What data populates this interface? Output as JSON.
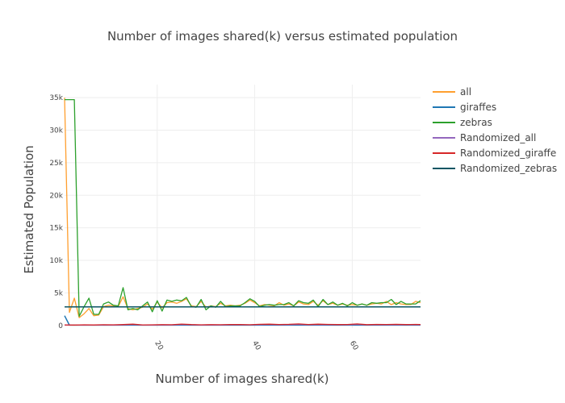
{
  "chart_data": {
    "type": "line",
    "title": "Number of images shared(k) versus estimated population",
    "xlabel": "Number of images shared(k)",
    "ylabel": "Estimated Population",
    "xlim": [
      1,
      74
    ],
    "ylim": [
      -400,
      37000
    ],
    "x_ticks": [
      20,
      40,
      60
    ],
    "y_ticks": [
      {
        "value": 0,
        "label": "0"
      },
      {
        "value": 5000,
        "label": "5k"
      },
      {
        "value": 10000,
        "label": "10k"
      },
      {
        "value": 15000,
        "label": "15k"
      },
      {
        "value": 20000,
        "label": "20k"
      },
      {
        "value": 25000,
        "label": "25k"
      },
      {
        "value": 30000,
        "label": "30k"
      },
      {
        "value": 35000,
        "label": "35k"
      }
    ],
    "grid": true,
    "legend_position": "right",
    "series": [
      {
        "name": "all",
        "color": "#ff9f2f",
        "x": [
          1,
          2,
          3,
          4,
          5,
          6,
          7,
          8,
          9,
          10,
          11,
          12,
          13,
          14,
          15,
          16,
          17,
          18,
          19,
          20,
          21,
          22,
          23,
          24,
          25,
          26,
          27,
          28,
          29,
          30,
          31,
          32,
          33,
          34,
          35,
          36,
          37,
          38,
          39,
          40,
          41,
          42,
          43,
          44,
          45,
          46,
          47,
          48,
          49,
          50,
          51,
          52,
          53,
          54,
          55,
          56,
          57,
          58,
          59,
          60,
          61,
          62,
          63,
          64,
          65,
          66,
          67,
          68,
          69,
          70,
          71,
          72,
          73,
          74
        ],
        "y": [
          35000,
          2000,
          4200,
          1200,
          1800,
          2600,
          1500,
          1600,
          2900,
          3100,
          3000,
          2900,
          4400,
          2600,
          2400,
          2600,
          2800,
          3300,
          2500,
          3600,
          2700,
          3500,
          3600,
          3400,
          3700,
          4100,
          3000,
          2900,
          3700,
          2800,
          3000,
          2900,
          3400,
          3000,
          3100,
          3000,
          3100,
          3400,
          3900,
          3500,
          3000,
          3200,
          3100,
          3000,
          3500,
          3100,
          3300,
          3000,
          3600,
          3300,
          3200,
          3700,
          3100,
          3800,
          3200,
          3400,
          3100,
          3300,
          3100,
          3200,
          3100,
          3300,
          3100,
          3300,
          3400,
          3300,
          3700,
          3200,
          3500,
          3300,
          3200,
          3200,
          3700,
          3500
        ]
      },
      {
        "name": "giraffes",
        "color": "#1f77b4",
        "x": [
          1,
          2,
          74
        ],
        "y": [
          1500,
          50,
          50
        ]
      },
      {
        "name": "zebras",
        "color": "#2ca02c",
        "x": [
          1,
          2,
          3,
          4,
          5,
          6,
          7,
          8,
          9,
          10,
          11,
          12,
          13,
          14,
          15,
          16,
          17,
          18,
          19,
          20,
          21,
          22,
          23,
          24,
          25,
          26,
          27,
          28,
          29,
          30,
          31,
          32,
          33,
          34,
          35,
          36,
          37,
          38,
          39,
          40,
          41,
          42,
          43,
          44,
          45,
          46,
          47,
          48,
          49,
          50,
          51,
          52,
          53,
          54,
          55,
          56,
          57,
          58,
          59,
          60,
          61,
          62,
          63,
          64,
          65,
          66,
          67,
          68,
          69,
          70,
          71,
          72,
          73,
          74
        ],
        "y": [
          34700,
          34700,
          34700,
          1400,
          2900,
          4200,
          1700,
          1700,
          3300,
          3600,
          3100,
          3000,
          5800,
          2400,
          2600,
          2400,
          3000,
          3600,
          2100,
          3800,
          2200,
          3900,
          3700,
          3900,
          3800,
          4300,
          2900,
          2800,
          4000,
          2400,
          3000,
          2800,
          3700,
          2900,
          3000,
          3000,
          3000,
          3500,
          4100,
          3700,
          2900,
          3100,
          3200,
          3100,
          3200,
          3200,
          3500,
          3000,
          3800,
          3500,
          3400,
          3900,
          2900,
          4000,
          3200,
          3600,
          3100,
          3400,
          3000,
          3500,
          3100,
          3300,
          3100,
          3500,
          3400,
          3500,
          3500,
          4000,
          3200,
          3700,
          3300,
          3300,
          3300,
          3800
        ]
      },
      {
        "name": "Randomized_all",
        "color": "#9467bd",
        "x": [
          1,
          3,
          5,
          7,
          9,
          11,
          13,
          15,
          17,
          19,
          21,
          23,
          25,
          27,
          29,
          31,
          33,
          35,
          37,
          39,
          41,
          43,
          45,
          47,
          49,
          51,
          53,
          55,
          57,
          59,
          61,
          63,
          65,
          67,
          69,
          71,
          73,
          74
        ],
        "y": [
          50,
          50,
          60,
          50,
          70,
          60,
          80,
          150,
          50,
          60,
          80,
          70,
          140,
          90,
          60,
          80,
          70,
          90,
          100,
          80,
          120,
          150,
          90,
          110,
          160,
          90,
          130,
          110,
          90,
          100,
          160,
          80,
          110,
          100,
          120,
          90,
          110,
          100
        ]
      },
      {
        "name": "Randomized_giraffe",
        "color": "#d62728",
        "x": [
          1,
          3,
          5,
          7,
          9,
          11,
          13,
          15,
          17,
          19,
          21,
          23,
          25,
          27,
          29,
          31,
          33,
          35,
          37,
          39,
          41,
          43,
          45,
          47,
          49,
          51,
          53,
          55,
          57,
          59,
          61,
          63,
          65,
          67,
          69,
          71,
          73,
          74
        ],
        "y": [
          80,
          60,
          90,
          70,
          110,
          90,
          130,
          200,
          80,
          100,
          120,
          110,
          210,
          130,
          90,
          120,
          110,
          140,
          130,
          110,
          170,
          200,
          140,
          170,
          230,
          140,
          190,
          160,
          130,
          150,
          230,
          120,
          160,
          140,
          170,
          130,
          160,
          140
        ]
      },
      {
        "name": "Randomized_zebras",
        "color": "#0b5563",
        "x": [
          1,
          74
        ],
        "y": [
          2850,
          2850
        ]
      }
    ]
  }
}
